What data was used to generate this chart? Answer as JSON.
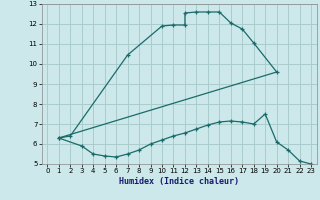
{
  "xlabel": "Humidex (Indice chaleur)",
  "bg_color": "#cce8ea",
  "grid_color": "#aacccc",
  "line_color": "#1a6b6b",
  "xlim": [
    -0.5,
    23.5
  ],
  "ylim": [
    5,
    13
  ],
  "xticks": [
    0,
    1,
    2,
    3,
    4,
    5,
    6,
    7,
    8,
    9,
    10,
    11,
    12,
    13,
    14,
    15,
    16,
    17,
    18,
    19,
    20,
    21,
    22,
    23
  ],
  "yticks": [
    5,
    6,
    7,
    8,
    9,
    10,
    11,
    12,
    13
  ],
  "curve1_x": [
    1,
    2,
    7,
    10,
    11,
    12,
    12,
    13,
    14,
    15,
    16,
    17,
    18,
    20
  ],
  "curve1_y": [
    6.3,
    6.4,
    10.45,
    11.9,
    11.95,
    11.95,
    12.55,
    12.6,
    12.6,
    12.6,
    12.05,
    11.75,
    11.05,
    9.6
  ],
  "curve2_x": [
    1,
    3,
    4,
    5,
    6,
    7,
    8,
    9,
    10,
    11,
    12,
    13,
    14,
    15,
    16,
    17,
    18,
    19,
    20,
    21,
    22,
    23
  ],
  "curve2_y": [
    6.3,
    5.9,
    5.5,
    5.4,
    5.35,
    5.5,
    5.7,
    6.0,
    6.2,
    6.4,
    6.55,
    6.75,
    6.95,
    7.1,
    7.15,
    7.1,
    7.0,
    7.5,
    6.1,
    5.7,
    5.15,
    5.0
  ],
  "curve3_x": [
    1,
    20
  ],
  "curve3_y": [
    6.3,
    9.6
  ]
}
